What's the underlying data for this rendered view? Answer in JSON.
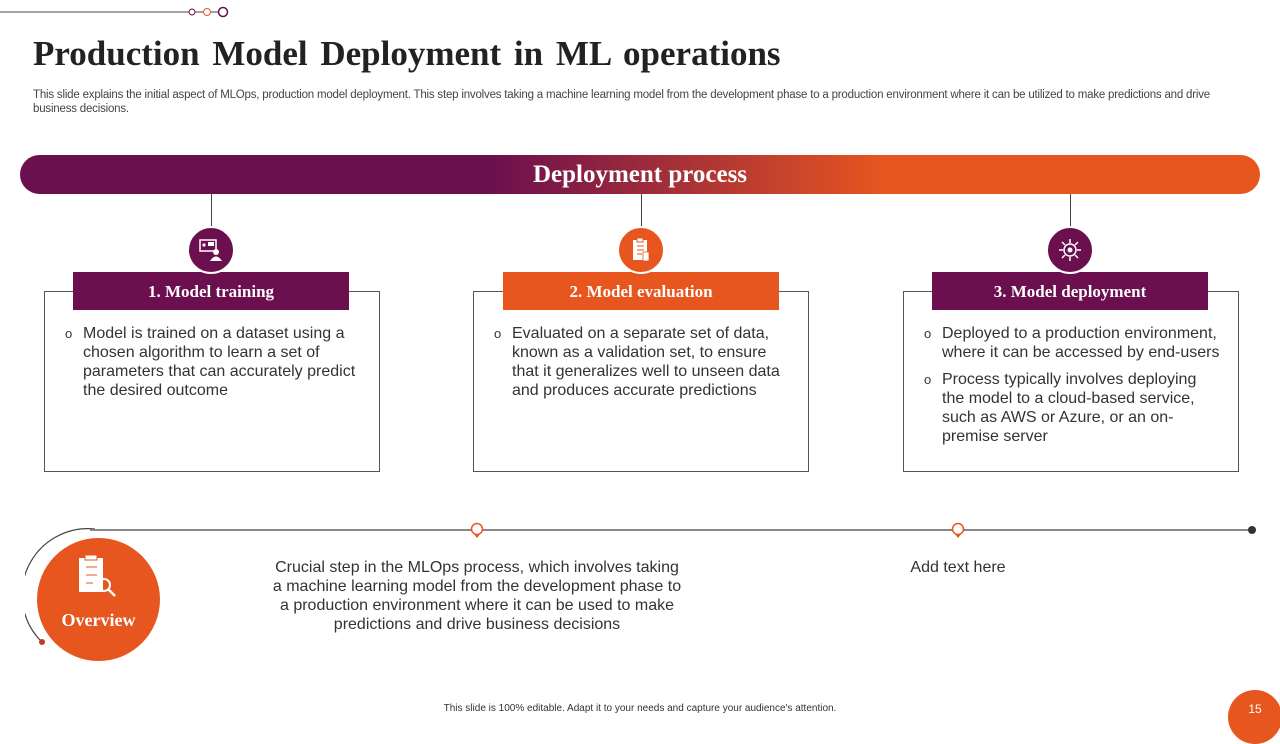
{
  "title": "Production Model Deployment in ML operations",
  "subtitle": "This slide explains the initial aspect of MLOps, production model deployment. This step involves taking a machine learning model from the development phase to a production environment where it can be utilized to make predictions and drive business decisions.",
  "banner": "Deployment process",
  "colors": {
    "purple": "#6b0f4e",
    "orange": "#e8561f"
  },
  "steps": [
    {
      "title": "1. Model training",
      "icon": "presentation-user-icon",
      "bullets": [
        "Model is trained on a dataset using a chosen algorithm to learn a set of parameters that can accurately predict the desired outcome"
      ]
    },
    {
      "title": "2. Model evaluation",
      "icon": "checklist-icon",
      "bullets": [
        "Evaluated on a separate set of data, known as a validation set, to ensure that it generalizes well to unseen data and produces accurate predictions"
      ]
    },
    {
      "title": "3. Model deployment",
      "icon": "target-gear-icon",
      "bullets": [
        "Deployed to a production environment, where it can be accessed by end-users",
        "Process typically involves deploying the model to a cloud-based service, such as AWS or Azure, or an on-premise server"
      ]
    }
  ],
  "overview": {
    "label": "Overview",
    "description": "Crucial step in the MLOps process, which involves taking a machine learning model from the development phase to a production environment where it can be used to make predictions and drive business decisions",
    "placeholder": "Add text here"
  },
  "footer": "This slide is 100% editable. Adapt it to your needs and capture your audience's attention.",
  "page_number": "15"
}
